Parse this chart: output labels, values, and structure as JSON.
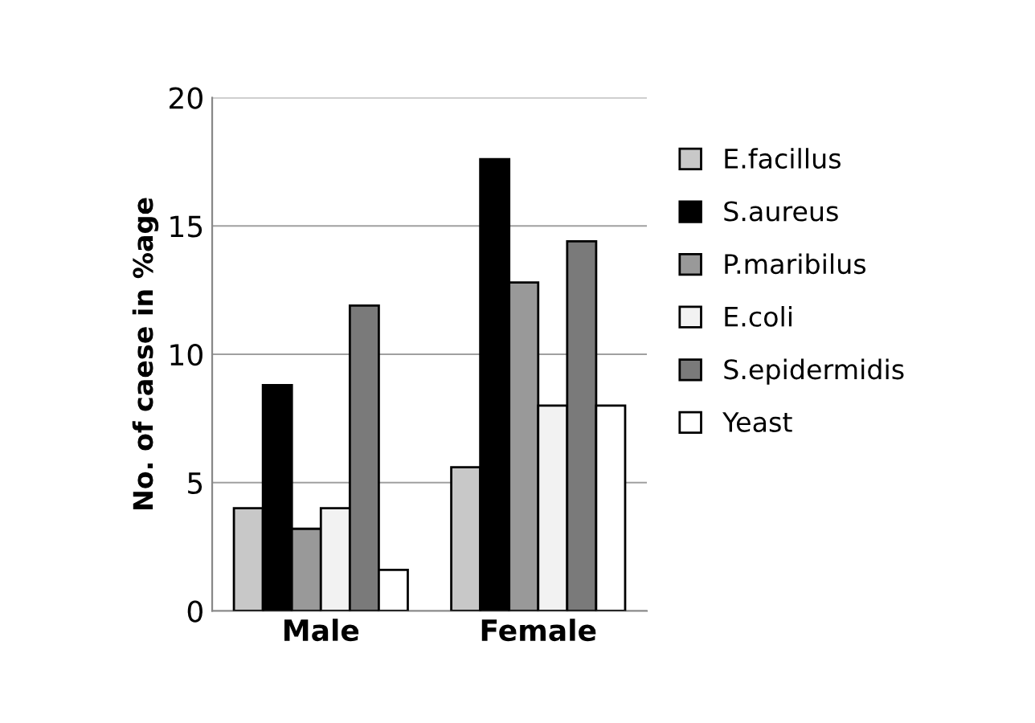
{
  "chart_data": {
    "type": "bar",
    "ylabel": "No. of caese in %age",
    "categories": [
      "Male",
      "Female"
    ],
    "series": [
      {
        "name": "E.facillus",
        "color": "#c8c8c8",
        "values": [
          4.0,
          5.6
        ]
      },
      {
        "name": "S.aureus",
        "color": "#000000",
        "values": [
          8.8,
          17.6
        ]
      },
      {
        "name": "P.maribilus",
        "color": "#999999",
        "values": [
          3.2,
          12.8
        ]
      },
      {
        "name": "E.coli",
        "color": "#f2f2f2",
        "values": [
          4.0,
          8.0
        ]
      },
      {
        "name": "S.epidermidis",
        "color": "#7a7a7a",
        "values": [
          11.9,
          14.4
        ]
      },
      {
        "name": "Yeast",
        "color": "#ffffff",
        "values": [
          1.6,
          8.0
        ]
      }
    ],
    "ylim": [
      0,
      20
    ],
    "yticks": [
      0,
      5,
      10,
      15,
      20
    ],
    "grid": "y",
    "legend": "right"
  }
}
